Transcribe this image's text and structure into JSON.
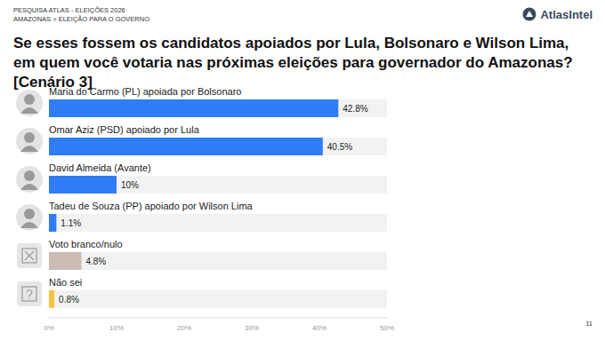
{
  "chart_data": {
    "type": "bar",
    "orientation": "horizontal",
    "header": [
      "PESQUISA ATLAS - ELEIÇÕES 2026",
      "AMAZONAS > ELEIÇÃO PARA O GOVERNO"
    ],
    "logo": "AtlasIntel",
    "title": "Se esses fossem os candidatos apoiados por Lula, Bolsonaro e Wilson Lima, em quem você votaria nas próximas eleições para governador do Amazonas? [Cenário 3]",
    "page_number": "11",
    "categories": [
      "Maria do Carmo (PL) apoiada por Bolsonaro",
      "Omar Aziz (PSD) apoiado por Lula",
      "David Almeida (Avante)",
      "Tadeu de Souza (PP) apoiado por Wilson Lima",
      "Voto branco/nulo",
      "Não sei"
    ],
    "values": [
      42.8,
      40.5,
      10,
      1.1,
      4.8,
      0.8
    ],
    "value_labels": [
      "42.8%",
      "40.5%",
      "10%",
      "1.1%",
      "4.8%",
      "0.8%"
    ],
    "colors": [
      "#2f7df6",
      "#2f7df6",
      "#2f7df6",
      "#2f7df6",
      "#cbbcb3",
      "#f6c445"
    ],
    "xlim": [
      0,
      50
    ],
    "xticks": [
      {
        "value": 0,
        "label": "0%"
      },
      {
        "value": 10,
        "label": "10%"
      },
      {
        "value": 20,
        "label": "20%"
      },
      {
        "value": 30,
        "label": "30%"
      },
      {
        "value": 40,
        "label": "40%"
      },
      {
        "value": 50,
        "label": "50%"
      }
    ],
    "data_labels": true,
    "grid": false
  }
}
